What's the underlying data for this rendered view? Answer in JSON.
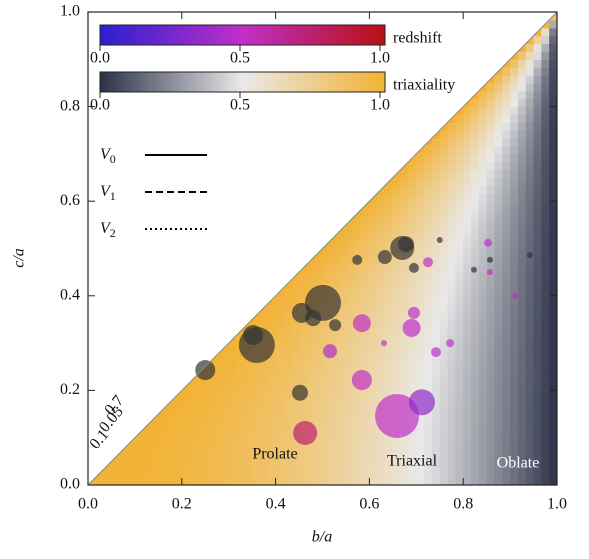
{
  "chart_data": {
    "type": "scatter",
    "x_label": "b/a",
    "y_label": "c/a",
    "xlim": [
      0,
      1
    ],
    "ylim": [
      0,
      1
    ],
    "xticks": [
      {
        "value": 0,
        "label": "0.0"
      },
      {
        "value": 0.2,
        "label": "0.2"
      },
      {
        "value": 0.4,
        "label": "0.4"
      },
      {
        "value": 0.6,
        "label": "0.6"
      },
      {
        "value": 0.8,
        "label": "0.8"
      },
      {
        "value": 1,
        "label": "1.0"
      }
    ],
    "yticks": [
      {
        "value": 0,
        "label": "0.0"
      },
      {
        "value": 0.2,
        "label": "0.2"
      },
      {
        "value": 0.4,
        "label": "0.4"
      },
      {
        "value": 0.6,
        "label": "0.6"
      },
      {
        "value": 0.8,
        "label": "0.8"
      },
      {
        "value": 1,
        "label": "1.0"
      }
    ],
    "series": [
      {
        "color": "#333333",
        "x": [
          0.25,
          0.36,
          0.352,
          0.452,
          0.456,
          0.48,
          0.501,
          0.527,
          0.574,
          0.633,
          0.67,
          0.678,
          0.695,
          0.75,
          0.823,
          0.857,
          0.942
        ],
        "values": [
          0.243,
          0.296,
          0.317,
          0.195,
          0.364,
          0.353,
          0.385,
          0.338,
          0.476,
          0.482,
          0.501,
          0.509,
          0.459,
          0.518,
          0.455,
          0.476,
          0.486
        ],
        "sizes": [
          10,
          18,
          10,
          8,
          10,
          8,
          18,
          6,
          5,
          7,
          12,
          8,
          5,
          3,
          3,
          3,
          3
        ]
      },
      {
        "color": "redshift",
        "x": [
          0.463,
          0.584,
          0.516,
          0.584,
          0.659,
          0.712,
          0.69,
          0.695,
          0.742,
          0.772,
          0.631,
          0.725,
          0.853,
          0.857,
          0.911
        ],
        "values": [
          0.11,
          0.342,
          0.283,
          0.222,
          0.146,
          0.175,
          0.332,
          0.364,
          0.281,
          0.3,
          0.3,
          0.471,
          0.512,
          0.45,
          0.4
        ],
        "sizes": [
          12,
          9,
          7,
          10,
          22,
          13,
          9,
          6,
          5,
          4,
          3,
          5,
          4,
          3,
          3
        ],
        "redshift": [
          0.75,
          0.5,
          0.45,
          0.5,
          0.5,
          0.35,
          0.5,
          0.5,
          0.5,
          0.5,
          0.5,
          0.5,
          0.5,
          0.5,
          0.5
        ]
      }
    ],
    "colorbars": [
      {
        "label": "redshift",
        "colors": [
          "#2a1fd0",
          "#c030c8",
          "#b81010"
        ],
        "ticks": [
          {
            "value": 0,
            "label": "0.0"
          },
          {
            "value": 0.5,
            "label": "0.5"
          },
          {
            "value": 1,
            "label": "1.0"
          }
        ]
      },
      {
        "label": "triaxiality",
        "colors": [
          "#2b3148",
          "#e9e9e9",
          "#f2b233"
        ],
        "ticks": [
          {
            "value": 0,
            "label": "0.0"
          },
          {
            "value": 0.5,
            "label": "0.5"
          },
          {
            "value": 1,
            "label": "1.0"
          }
        ]
      }
    ],
    "legend": [
      {
        "label": "V",
        "sub": "0",
        "dash": "solid"
      },
      {
        "label": "V",
        "sub": "1",
        "dash": "dashed"
      },
      {
        "label": "V",
        "sub": "2",
        "dash": "dotted"
      }
    ],
    "annotations": [
      "0.1",
      "0.05",
      "0.7",
      "Prolate",
      "Triaxial",
      "Oblate"
    ]
  }
}
